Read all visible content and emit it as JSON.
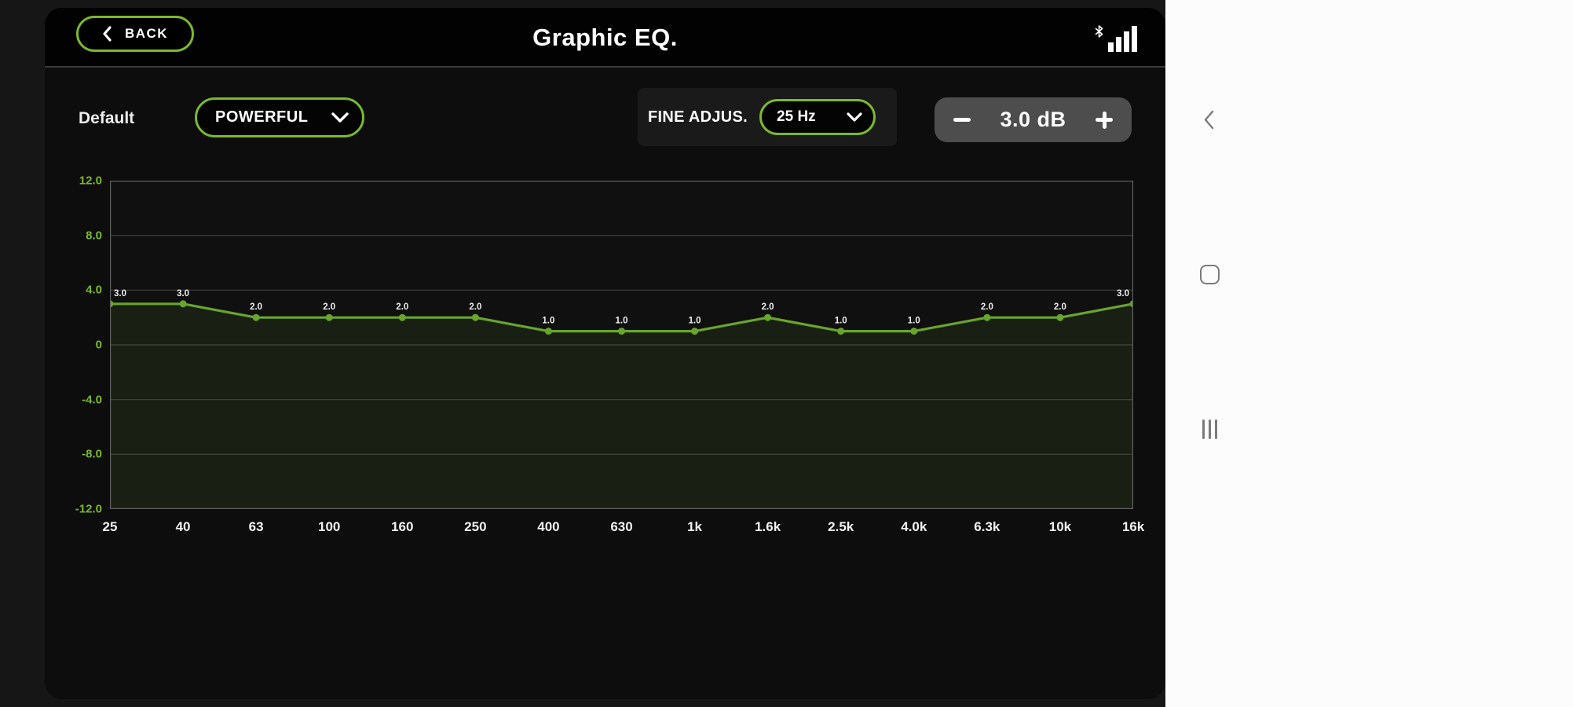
{
  "header": {
    "back_label": "BACK",
    "title": "Graphic EQ."
  },
  "controls": {
    "preset_label": "Default",
    "preset_value": "POWERFUL",
    "fine_adjust_label": "FINE ADJUS.",
    "frequency_value": "25 Hz",
    "gain_value": "3.0 dB"
  },
  "chart_data": {
    "type": "line",
    "title": "",
    "xlabel": "",
    "ylabel": "",
    "categories": [
      "25",
      "40",
      "63",
      "100",
      "160",
      "250",
      "400",
      "630",
      "1k",
      "1.6k",
      "2.5k",
      "4.0k",
      "6.3k",
      "10k",
      "16k"
    ],
    "values": [
      3.0,
      3.0,
      2.0,
      2.0,
      2.0,
      2.0,
      1.0,
      1.0,
      1.0,
      2.0,
      1.0,
      1.0,
      2.0,
      2.0,
      3.0
    ],
    "point_labels": [
      "3.0",
      "3.0",
      "2.0",
      "2.0",
      "2.0",
      "2.0",
      "1.0",
      "1.0",
      "1.0",
      "2.0",
      "1.0",
      "1.0",
      "2.0",
      "2.0",
      "3.0"
    ],
    "y_tick_values": [
      12,
      8,
      4,
      0,
      -4,
      -8,
      -12
    ],
    "y_tick_labels": [
      "12.0",
      "8.0",
      "4.0",
      "0",
      "-4.0",
      "-8.0",
      "-12.0"
    ],
    "ylim": [
      -12,
      12
    ],
    "grid": true,
    "legend": false,
    "line_color": "#68a52c",
    "fill_color": "rgba(110,170,45,0.10)"
  },
  "icons": {
    "header": [
      "chevron-left",
      "bluetooth",
      "signal-bars"
    ],
    "dropdowns": "chevron-down",
    "stepper": [
      "minus",
      "plus"
    ],
    "navbar": [
      "chevron-left-back",
      "home-square",
      "recents-bars"
    ]
  },
  "colors": {
    "accent_green": "#7ab82d",
    "line_green": "#68a52c",
    "stepper_bg": "#4d4d4d",
    "navbar_bg": "#fcfcfc",
    "topbar_bg": "#020202"
  }
}
